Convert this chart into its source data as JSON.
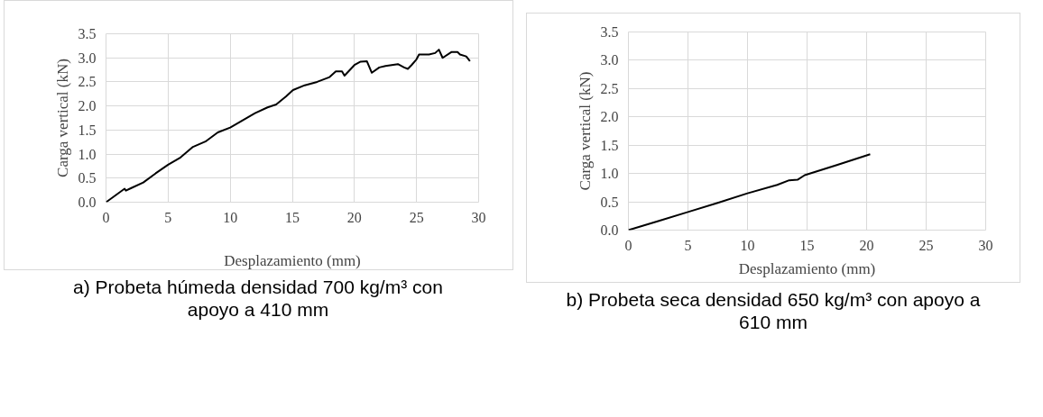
{
  "chart_data": [
    {
      "type": "line",
      "title": "a) Probeta húmeda densidad 700 kg/m³ con apoyo a 410 mm",
      "xlabel": "Desplazamiento (mm)",
      "ylabel": "Carga vertical (kN)",
      "xlim": [
        0,
        30
      ],
      "ylim": [
        0,
        3.5
      ],
      "xticks": [
        0,
        5,
        10,
        15,
        20,
        25,
        30
      ],
      "yticks": [
        {
          "value": 0,
          "label": "0.0"
        },
        {
          "value": 0.5,
          "label": "0.5"
        },
        {
          "value": 1,
          "label": "1.0"
        },
        {
          "value": 1.5,
          "label": "1.5"
        },
        {
          "value": 2,
          "label": "2.0"
        },
        {
          "value": 2.5,
          "label": "2.5"
        },
        {
          "value": 3,
          "label": "3.0"
        },
        {
          "value": 3.5,
          "label": "3.5"
        }
      ],
      "grid": true,
      "marker": "none",
      "line_style": "solid",
      "series": [
        {
          "color": "#000000",
          "x": [
            0,
            1.5,
            1.6,
            2,
            3,
            4,
            5,
            6,
            7,
            8,
            9,
            10,
            11,
            12,
            13,
            13.7,
            14.5,
            15.05,
            16,
            17,
            18,
            18.5,
            19,
            19.2,
            20,
            20.5,
            21,
            21.4,
            22,
            22.5,
            23,
            23.5,
            24,
            24.3,
            24.6,
            25,
            25.2,
            26,
            26.5,
            26.8,
            27.1,
            27.8,
            28.3,
            28.5,
            29,
            29.3
          ],
          "values": [
            0,
            0.28,
            0.24,
            0.29,
            0.41,
            0.6,
            0.78,
            0.93,
            1.15,
            1.26,
            1.45,
            1.55,
            1.7,
            1.85,
            1.97,
            2.03,
            2.2,
            2.33,
            2.43,
            2.5,
            2.6,
            2.72,
            2.72,
            2.63,
            2.85,
            2.92,
            2.93,
            2.69,
            2.8,
            2.83,
            2.85,
            2.87,
            2.8,
            2.77,
            2.85,
            2.97,
            3.07,
            3.07,
            3.1,
            3.17,
            3.0,
            3.12,
            3.12,
            3.07,
            3.03,
            2.93
          ]
        }
      ]
    },
    {
      "type": "line",
      "title": "b) Probeta seca densidad 650 kg/m³ con apoyo a 610 mm",
      "xlabel": "Desplazamiento (mm)",
      "ylabel": "Carga vertical (kN)",
      "xlim": [
        0,
        30
      ],
      "ylim": [
        0,
        3.5
      ],
      "xticks": [
        0,
        5,
        10,
        15,
        20,
        25,
        30
      ],
      "yticks": [
        {
          "value": 0,
          "label": "0.0"
        },
        {
          "value": 0.5,
          "label": "0.5"
        },
        {
          "value": 1,
          "label": "1.0"
        },
        {
          "value": 1.5,
          "label": "1.5"
        },
        {
          "value": 2,
          "label": "2.0"
        },
        {
          "value": 2.5,
          "label": "2.5"
        },
        {
          "value": 3,
          "label": "3.0"
        },
        {
          "value": 3.5,
          "label": "3.5"
        }
      ],
      "grid": true,
      "marker": "none",
      "line_style": "solid",
      "series": [
        {
          "color": "#000000",
          "x": [
            0,
            2.5,
            5,
            7.5,
            10,
            12.5,
            13.5,
            14.2,
            14.8,
            17.5,
            20.3
          ],
          "values": [
            0,
            0.16,
            0.32,
            0.48,
            0.65,
            0.8,
            0.88,
            0.89,
            0.97,
            1.15,
            1.34
          ]
        }
      ]
    }
  ]
}
